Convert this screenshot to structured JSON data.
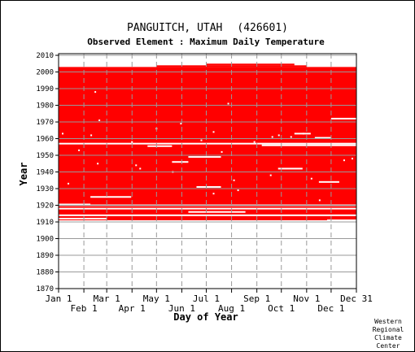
{
  "chart_data": {
    "type": "heatmap",
    "title": "PANGUITCH, UTAH",
    "station_id": "(426601)",
    "subtitle": "Observed Element : Maximum Daily Temperature",
    "xlabel": "Day of Year",
    "ylabel": "Year",
    "xlim": [
      1,
      366
    ],
    "ylim": [
      1870,
      2011
    ],
    "grid": true,
    "x_ticks_top_row": [
      {
        "label": "Jan 1",
        "day": 1
      },
      {
        "label": "Mar 1",
        "day": 60
      },
      {
        "label": "May 1",
        "day": 121
      },
      {
        "label": "Jul 1",
        "day": 182
      },
      {
        "label": "Sep 1",
        "day": 244
      },
      {
        "label": "Nov 1",
        "day": 305
      },
      {
        "label": "Dec 31",
        "day": 366
      }
    ],
    "x_ticks_bottom_row": [
      {
        "label": "Feb 1",
        "day": 32
      },
      {
        "label": "Apr 1",
        "day": 91
      },
      {
        "label": "Jun 1",
        "day": 152
      },
      {
        "label": "Aug 1",
        "day": 213
      },
      {
        "label": "Oct 1",
        "day": 274
      },
      {
        "label": "Dec 1",
        "day": 335
      }
    ],
    "y_ticks": [
      1870,
      1880,
      1890,
      1900,
      1910,
      1920,
      1930,
      1940,
      1950,
      1960,
      1970,
      1980,
      1990,
      2000,
      2010
    ],
    "data_color": "#ff0000",
    "coverage_blocks": [
      {
        "name": "main-record",
        "year_start": 1911,
        "year_end": 2003,
        "day_start": 1,
        "day_end": 366
      },
      {
        "name": "late-record-spring",
        "year_start": 2003,
        "year_end": 2004,
        "day_start": 121,
        "day_end": 305
      },
      {
        "name": "late-record-summer",
        "year_start": 2004,
        "year_end": 2005,
        "day_start": 182,
        "day_end": 290
      }
    ],
    "missing_periods": [
      {
        "year": 1957,
        "day_start": 1,
        "day_end": 366
      },
      {
        "year": 1955.5,
        "day_start": 110,
        "day_end": 140
      },
      {
        "year": 1956,
        "day_start": 250,
        "day_end": 366
      },
      {
        "year": 1920,
        "day_start": 1,
        "day_end": 366
      },
      {
        "year": 1918,
        "day_start": 1,
        "day_end": 366
      },
      {
        "year": 1914,
        "day_start": 1,
        "day_end": 366
      },
      {
        "year": 1912,
        "day_start": 1,
        "day_end": 60
      },
      {
        "year": 1911,
        "day_start": 330,
        "day_end": 366
      },
      {
        "year": 1920.5,
        "day_start": 1,
        "day_end": 40
      },
      {
        "year": 1916,
        "day_start": 160,
        "day_end": 230
      },
      {
        "year": 1931,
        "day_start": 170,
        "day_end": 200
      },
      {
        "year": 1949,
        "day_start": 160,
        "day_end": 200
      },
      {
        "year": 1946,
        "day_start": 140,
        "day_end": 160
      },
      {
        "year": 1963,
        "day_start": 290,
        "day_end": 310
      },
      {
        "year": 1960.5,
        "day_start": 315,
        "day_end": 335
      },
      {
        "year": 1972,
        "day_start": 335,
        "day_end": 366
      },
      {
        "year": 1934,
        "day_start": 320,
        "day_end": 345
      },
      {
        "year": 1942,
        "day_start": 270,
        "day_end": 300
      },
      {
        "year": 1925,
        "day_start": 40,
        "day_end": 90
      }
    ],
    "scattered_missing_days": [
      {
        "year": 1963,
        "day": 5
      },
      {
        "year": 1962,
        "day": 40
      },
      {
        "year": 1958,
        "day": 90
      },
      {
        "year": 1971,
        "day": 50
      },
      {
        "year": 1969,
        "day": 150
      },
      {
        "year": 1966,
        "day": 120
      },
      {
        "year": 1981,
        "day": 208
      },
      {
        "year": 1988,
        "day": 45
      },
      {
        "year": 1945,
        "day": 48
      },
      {
        "year": 1944,
        "day": 95
      },
      {
        "year": 1936,
        "day": 310
      },
      {
        "year": 1929,
        "day": 220
      },
      {
        "year": 1927,
        "day": 190
      },
      {
        "year": 1933,
        "day": 12
      },
      {
        "year": 1940,
        "day": 140
      },
      {
        "year": 1952,
        "day": 200
      },
      {
        "year": 1953,
        "day": 25
      },
      {
        "year": 1947,
        "day": 350
      },
      {
        "year": 1938,
        "day": 260
      },
      {
        "year": 1923,
        "day": 320
      },
      {
        "year": 1961,
        "day": 262
      },
      {
        "year": 1962,
        "day": 270
      },
      {
        "year": 1961,
        "day": 285
      },
      {
        "year": 1963,
        "day": 300
      },
      {
        "year": 1958,
        "day": 240
      },
      {
        "year": 1964,
        "day": 190
      },
      {
        "year": 1959,
        "day": 175
      },
      {
        "year": 1948,
        "day": 360
      },
      {
        "year": 1935,
        "day": 215
      },
      {
        "year": 1942,
        "day": 100
      }
    ]
  },
  "credit": [
    "Western",
    "Regional",
    "Climate",
    "Center"
  ]
}
